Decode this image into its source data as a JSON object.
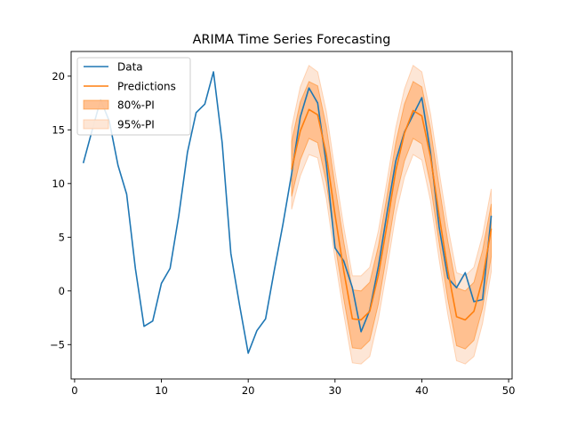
{
  "chart_data": {
    "type": "line",
    "title": "ARIMA Time Series Forecasting",
    "xlabel": "",
    "ylabel": "",
    "xlim": [
      -0.4,
      50.4
    ],
    "ylim": [
      -8.2,
      22.3
    ],
    "xticks": [
      0,
      10,
      20,
      30,
      40,
      50
    ],
    "yticks": [
      -5,
      0,
      5,
      10,
      15,
      20
    ],
    "grid": false,
    "legend_position": "top-left",
    "colors": {
      "data": "#1f77b4",
      "predictions": "#ff7f0e",
      "pi80_fill": "#ffbb88",
      "pi95_fill": "#fde3d2"
    },
    "series": [
      {
        "name": "Data",
        "x": [
          1,
          2,
          3,
          4,
          5,
          6,
          7,
          8,
          9,
          10,
          11,
          12,
          13,
          14,
          15,
          16,
          17,
          18,
          19,
          20,
          21,
          22,
          23,
          24,
          25,
          26,
          27,
          28,
          29,
          30,
          31,
          32,
          33,
          34,
          35,
          36,
          37,
          38,
          39,
          40,
          41,
          42,
          43,
          44,
          45,
          46,
          47,
          48
        ],
        "values": [
          11.9,
          14.9,
          17.8,
          15.8,
          11.7,
          9.0,
          2.1,
          -3.3,
          -2.8,
          0.7,
          2.1,
          7.0,
          12.9,
          16.6,
          17.4,
          20.4,
          13.8,
          3.5,
          -1.3,
          -5.8,
          -3.7,
          -2.6,
          1.9,
          6.2,
          10.9,
          16.2,
          18.9,
          17.5,
          11.8,
          4.0,
          2.8,
          0.3,
          -3.8,
          -1.8,
          2.3,
          7.3,
          12.1,
          14.8,
          16.4,
          18.0,
          12.9,
          5.9,
          1.2,
          0.3,
          1.7,
          -1.0,
          -0.8,
          7.0
        ]
      },
      {
        "name": "Predictions",
        "x": [
          25,
          26,
          27,
          28,
          29,
          30,
          31,
          32,
          33,
          34,
          35,
          36,
          37,
          38,
          39,
          40,
          41,
          42,
          43,
          44,
          45,
          46,
          47,
          48
        ],
        "values": [
          11.3,
          14.9,
          16.9,
          16.4,
          12.7,
          7.1,
          1.9,
          -2.6,
          -2.7,
          -1.9,
          1.5,
          6.2,
          11.2,
          14.7,
          16.8,
          16.3,
          12.5,
          7.0,
          1.9,
          -2.4,
          -2.7,
          -1.9,
          1.1,
          5.8
        ]
      }
    ],
    "intervals": [
      {
        "name": "80%-PI",
        "x": [
          25,
          26,
          27,
          28,
          29,
          30,
          31,
          32,
          33,
          34,
          35,
          36,
          37,
          38,
          39,
          40,
          41,
          42,
          43,
          44,
          45,
          46,
          47,
          48
        ],
        "lower": [
          8.8,
          12.2,
          14.2,
          13.8,
          10.1,
          4.4,
          -0.7,
          -5.3,
          -5.4,
          -4.6,
          -1.2,
          3.6,
          8.6,
          12.1,
          14.2,
          13.7,
          9.9,
          4.4,
          -0.8,
          -5.1,
          -5.4,
          -4.6,
          -1.6,
          3.2
        ],
        "upper": [
          13.9,
          17.6,
          19.5,
          19.1,
          15.3,
          9.8,
          4.6,
          0.1,
          0.0,
          0.8,
          4.2,
          8.9,
          13.8,
          17.4,
          19.5,
          19.0,
          15.1,
          9.7,
          4.6,
          0.3,
          0.0,
          0.8,
          3.8,
          8.1
        ]
      },
      {
        "name": "95%-PI",
        "x": [
          25,
          26,
          27,
          28,
          29,
          30,
          31,
          32,
          33,
          34,
          35,
          36,
          37,
          38,
          39,
          40,
          41,
          42,
          43,
          44,
          45,
          46,
          47,
          48
        ],
        "lower": [
          7.6,
          10.7,
          12.7,
          12.4,
          8.6,
          3.0,
          -2.1,
          -6.7,
          -6.8,
          -6.1,
          -2.6,
          2.1,
          7.1,
          10.6,
          12.7,
          12.2,
          8.4,
          2.9,
          -2.2,
          -6.5,
          -6.8,
          -6.1,
          -3.0,
          1.8
        ],
        "upper": [
          15.2,
          19.0,
          21.0,
          20.4,
          16.7,
          11.2,
          6.0,
          1.4,
          1.4,
          2.2,
          5.6,
          10.3,
          15.2,
          18.8,
          21.0,
          20.4,
          16.5,
          11.1,
          6.0,
          1.7,
          1.4,
          2.2,
          5.2,
          9.5
        ]
      }
    ],
    "legend": [
      "Data",
      "Predictions",
      "80%-PI",
      "95%-PI"
    ]
  }
}
